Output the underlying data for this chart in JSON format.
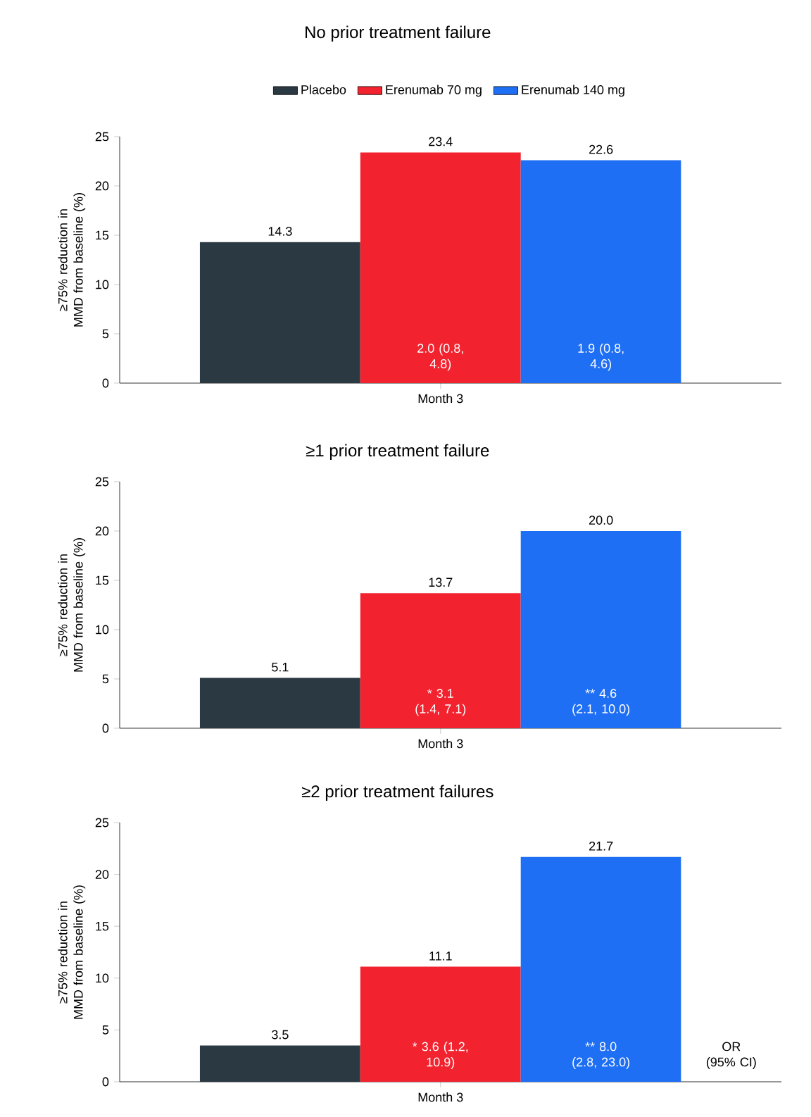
{
  "chart_data": [
    {
      "type": "bar",
      "title": "No prior treatment failure",
      "ylabel": "≥75% reduction in MMD from baseline (%)",
      "categories": [
        "Month 3"
      ],
      "ylim": [
        0,
        25
      ],
      "yticks": [
        0,
        5,
        10,
        15,
        20,
        25
      ],
      "legend": "top",
      "series": [
        {
          "name": "Placebo",
          "color": "#2b3943",
          "values": [
            14.3
          ],
          "value_labels": [
            "14.3"
          ]
        },
        {
          "name": "Erenumab 70 mg",
          "color": "#f2232f",
          "values": [
            23.4
          ],
          "value_labels": [
            "23.4"
          ]
        },
        {
          "name": "Erenumab 140 mg",
          "color": "#1f6ff4",
          "values": [
            22.6
          ],
          "value_labels": [
            "22.6"
          ]
        }
      ],
      "annotations": [
        "2.0 (0.8, 4.8)",
        "1.9 (0.8, 4.6)"
      ]
    },
    {
      "type": "bar",
      "title": "≥1 prior treatment failure",
      "ylabel": "≥75% reduction in MMD from baseline (%)",
      "categories": [
        "Month 3"
      ],
      "ylim": [
        0,
        25
      ],
      "yticks": [
        0,
        5,
        10,
        15,
        20,
        25
      ],
      "series": [
        {
          "color": "#2b3943",
          "values": [
            5.1
          ],
          "value_labels": [
            "5.1"
          ]
        },
        {
          "color": "#f2232f",
          "values": [
            13.7
          ],
          "value_labels": [
            "13.7"
          ]
        },
        {
          "color": "#1f6ff4",
          "values": [
            20.0
          ],
          "value_labels": [
            "20.0"
          ]
        }
      ],
      "annotations": [
        "* 3.1 (1.4, 7.1)",
        "** 4.6 (2.1, 10.0)"
      ]
    },
    {
      "type": "bar",
      "title": "≥2 prior treatment failures",
      "ylabel": "≥75% reduction in MMD from baseline (%)",
      "categories": [
        "Month 3"
      ],
      "ylim": [
        0,
        25
      ],
      "yticks": [
        0,
        5,
        10,
        15,
        20,
        25
      ],
      "series": [
        {
          "color": "#2b3943",
          "values": [
            3.5
          ],
          "value_labels": [
            "3.5"
          ]
        },
        {
          "color": "#f2232f",
          "values": [
            11.1
          ],
          "value_labels": [
            "11.1"
          ]
        },
        {
          "color": "#1f6ff4",
          "values": [
            21.7
          ],
          "value_labels": [
            "21.7"
          ]
        }
      ],
      "annotations": [
        "* 3.6 (1.2, 10.9)",
        "** 8.0 (2.8, 23.0)",
        "OR (95% CI)"
      ]
    }
  ]
}
